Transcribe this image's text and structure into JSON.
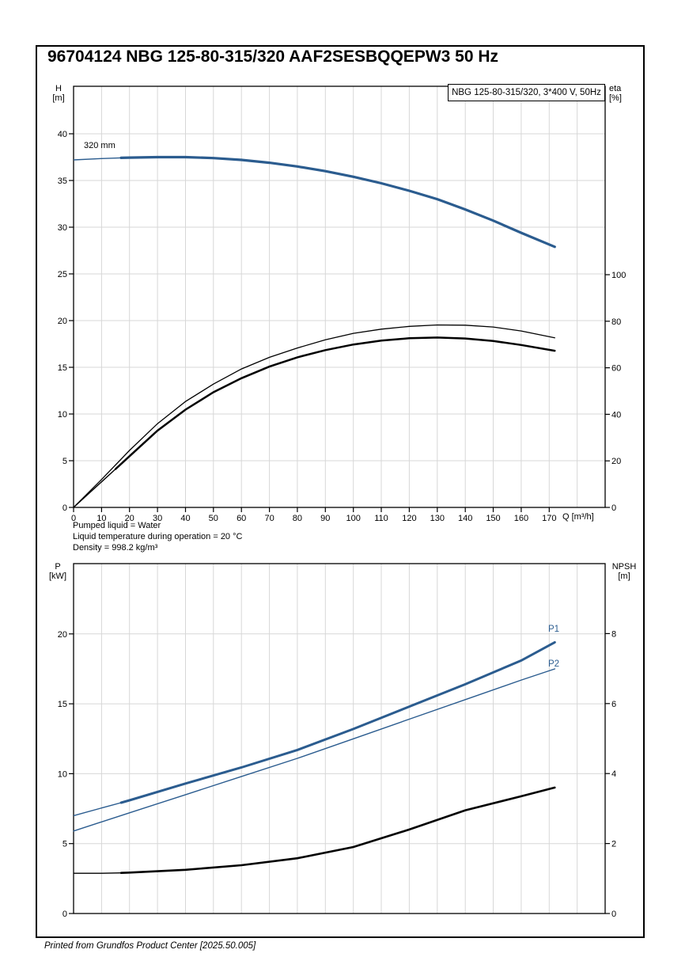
{
  "page": {
    "title": "96704124 NBG 125-80-315/320 AAF2SESBQQEPW3 50 Hz",
    "footer": "Printed from Grundfos Product Center [2025.50.005]"
  },
  "info_lines": [
    "Pumped liquid = Water",
    "Liquid temperature during operation = 20 °C",
    "Density = 998.2 kg/m³"
  ],
  "colors": {
    "curve_blue": "#2b5c8f",
    "curve_black": "#000000",
    "grid": "#d7d7d7"
  },
  "chart_data": [
    {
      "type": "line",
      "id": "qh-efficiency-chart",
      "legend": "NBG 125-80-315/320, 3*400 V, 50Hz",
      "xlabel": "Q [m³/h]",
      "grid": true,
      "x_axis": {
        "ticks": [
          0,
          10,
          20,
          30,
          40,
          50,
          60,
          70,
          80,
          90,
          100,
          110,
          120,
          130,
          140,
          150,
          160,
          170
        ],
        "range": [
          0,
          190
        ]
      },
      "left_axis": {
        "label": "H",
        "unit": "[m]",
        "ticks": [
          0,
          5,
          10,
          15,
          20,
          25,
          30,
          35,
          40
        ],
        "range": [
          0,
          44.5
        ]
      },
      "right_axis": {
        "label": "eta",
        "unit": "[%]",
        "ticks": [
          0,
          20,
          40,
          60,
          80,
          100
        ],
        "range": [
          0,
          100
        ]
      },
      "series": [
        {
          "name": "head-320mm",
          "label": "320 mm",
          "axis": "left",
          "color": "#2b5c8f",
          "width": 3.2,
          "thin_until": 17,
          "points": [
            [
              0,
              37.2
            ],
            [
              10,
              37.35
            ],
            [
              17,
              37.42
            ],
            [
              20,
              37.45
            ],
            [
              30,
              37.5
            ],
            [
              40,
              37.5
            ],
            [
              50,
              37.4
            ],
            [
              60,
              37.2
            ],
            [
              70,
              36.9
            ],
            [
              80,
              36.5
            ],
            [
              90,
              36.0
            ],
            [
              100,
              35.4
            ],
            [
              110,
              34.7
            ],
            [
              120,
              33.9
            ],
            [
              130,
              33.0
            ],
            [
              140,
              31.9
            ],
            [
              150,
              30.7
            ],
            [
              160,
              29.4
            ],
            [
              172,
              27.9
            ]
          ]
        },
        {
          "name": "eta-pump",
          "label": "",
          "axis": "right",
          "color": "#000000",
          "width": 1.3,
          "points": [
            [
              0,
              0
            ],
            [
              10,
              12
            ],
            [
              20,
              24.5
            ],
            [
              30,
              36
            ],
            [
              40,
              45.5
            ],
            [
              50,
              53
            ],
            [
              60,
              59.5
            ],
            [
              70,
              64.5
            ],
            [
              80,
              68.5
            ],
            [
              90,
              72
            ],
            [
              100,
              74.8
            ],
            [
              110,
              76.6
            ],
            [
              120,
              77.8
            ],
            [
              130,
              78.4
            ],
            [
              140,
              78.3
            ],
            [
              150,
              77.5
            ],
            [
              160,
              75.8
            ],
            [
              172,
              72.9
            ]
          ]
        },
        {
          "name": "eta-pump-motor",
          "label": "",
          "axis": "right",
          "color": "#000000",
          "width": 2.5,
          "thin_until": 15,
          "points": [
            [
              0,
              0
            ],
            [
              10,
              11
            ],
            [
              15,
              16.5
            ],
            [
              20,
              22
            ],
            [
              30,
              33
            ],
            [
              40,
              42
            ],
            [
              50,
              49.5
            ],
            [
              60,
              55.5
            ],
            [
              70,
              60.5
            ],
            [
              80,
              64.5
            ],
            [
              90,
              67.6
            ],
            [
              100,
              70
            ],
            [
              110,
              71.7
            ],
            [
              120,
              72.7
            ],
            [
              130,
              73.0
            ],
            [
              140,
              72.6
            ],
            [
              150,
              71.5
            ],
            [
              160,
              69.8
            ],
            [
              172,
              67.3
            ]
          ]
        }
      ]
    },
    {
      "type": "line",
      "id": "power-npsh-chart",
      "legend": "",
      "xlabel": "",
      "grid": true,
      "x_axis": {
        "ticks": [],
        "range": [
          0,
          190
        ]
      },
      "left_axis": {
        "label": "P",
        "unit": "[kW]",
        "ticks": [
          0,
          5,
          10,
          15,
          20
        ],
        "range": [
          0,
          25
        ]
      },
      "right_axis": {
        "label": "NPSH",
        "unit": "[m]",
        "ticks": [
          0,
          2,
          4,
          6,
          8
        ],
        "range": [
          0,
          10
        ]
      },
      "series": [
        {
          "name": "P1",
          "label": "P1",
          "axis": "left",
          "color": "#2b5c8f",
          "width": 3.0,
          "thin_until": 17,
          "points": [
            [
              0,
              7.0
            ],
            [
              10,
              7.55
            ],
            [
              17,
              7.93
            ],
            [
              20,
              8.1
            ],
            [
              40,
              9.3
            ],
            [
              60,
              10.45
            ],
            [
              80,
              11.7
            ],
            [
              100,
              13.2
            ],
            [
              120,
              14.8
            ],
            [
              140,
              16.4
            ],
            [
              160,
              18.1
            ],
            [
              172,
              19.4
            ]
          ]
        },
        {
          "name": "P2",
          "label": "P2",
          "axis": "left",
          "color": "#2b5c8f",
          "width": 1.4,
          "points": [
            [
              0,
              5.9
            ],
            [
              20,
              7.2
            ],
            [
              40,
              8.5
            ],
            [
              60,
              9.8
            ],
            [
              80,
              11.1
            ],
            [
              100,
              12.5
            ],
            [
              120,
              13.9
            ],
            [
              140,
              15.3
            ],
            [
              160,
              16.7
            ],
            [
              172,
              17.5
            ]
          ]
        },
        {
          "name": "NPSH",
          "label": "",
          "axis": "right",
          "color": "#000000",
          "width": 2.6,
          "thin_until": 17,
          "points": [
            [
              0,
              1.15
            ],
            [
              10,
              1.15
            ],
            [
              17,
              1.16
            ],
            [
              20,
              1.17
            ],
            [
              40,
              1.25
            ],
            [
              60,
              1.38
            ],
            [
              80,
              1.58
            ],
            [
              100,
              1.9
            ],
            [
              120,
              2.4
            ],
            [
              140,
              2.95
            ],
            [
              160,
              3.35
            ],
            [
              172,
              3.6
            ]
          ]
        }
      ]
    }
  ]
}
